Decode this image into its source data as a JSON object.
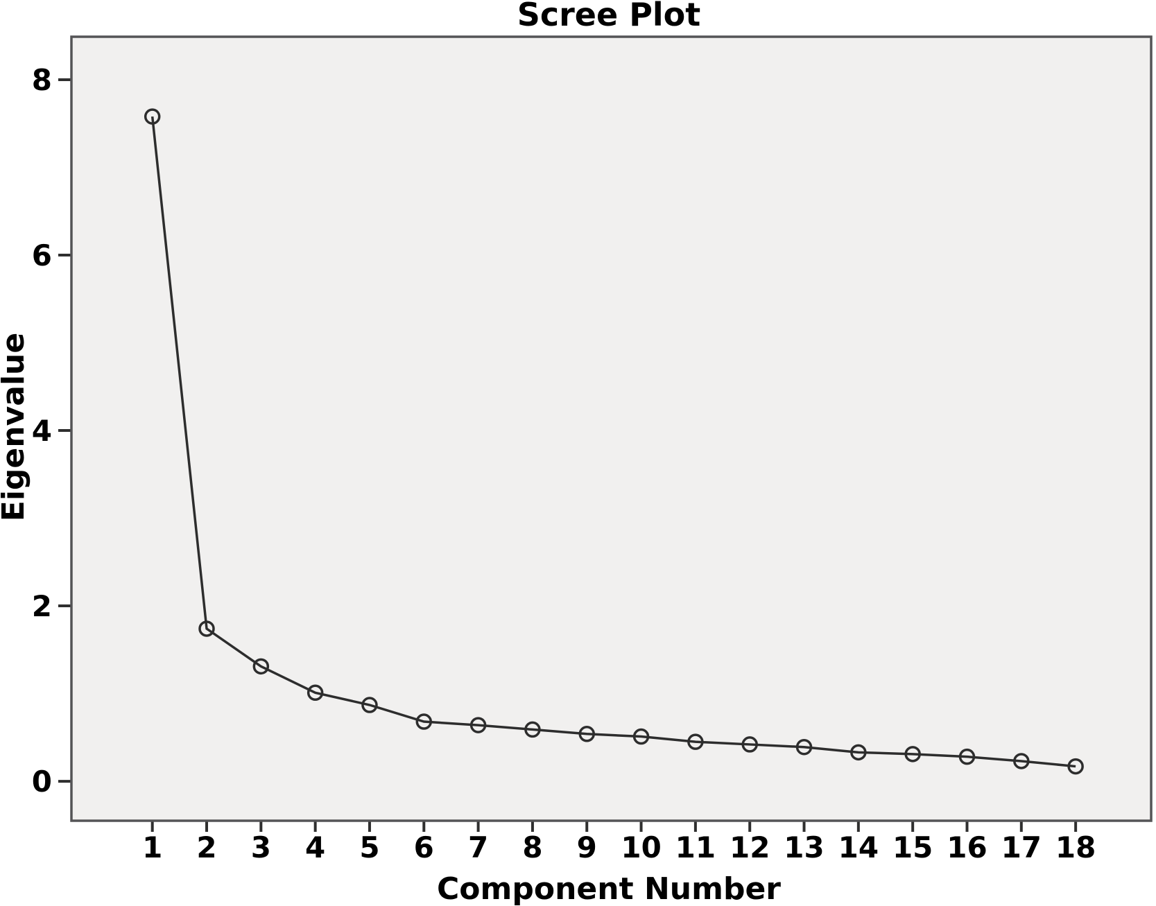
{
  "chart_data": {
    "type": "line",
    "title": "Scree Plot",
    "xlabel": "Component Number",
    "ylabel": "Eigenvalue",
    "x": [
      1,
      2,
      3,
      4,
      5,
      6,
      7,
      8,
      9,
      10,
      11,
      12,
      13,
      14,
      15,
      16,
      17,
      18
    ],
    "x_tick_labels": [
      "1",
      "2",
      "3",
      "4",
      "5",
      "6",
      "7",
      "8",
      "9",
      "10",
      "11",
      "12",
      "13",
      "14",
      "15",
      "16",
      "17",
      "18"
    ],
    "y_ticks": [
      0,
      2,
      4,
      6,
      8
    ],
    "series": [
      {
        "name": "Eigenvalue",
        "values": [
          7.58,
          1.74,
          1.31,
          1.01,
          0.87,
          0.68,
          0.64,
          0.59,
          0.54,
          0.51,
          0.45,
          0.42,
          0.39,
          0.33,
          0.31,
          0.28,
          0.23,
          0.17
        ]
      }
    ],
    "xlim": [
      -0.49,
      19.39
    ],
    "ylim": [
      -0.45,
      8.49
    ],
    "grid": false,
    "legend": "none",
    "marker": "open-circle",
    "colors": {
      "plot_background": "#f1f0ef",
      "frame": "#545456",
      "line": "#2d2d2d",
      "tick": "#2f2f2f",
      "text": "#000000"
    }
  }
}
